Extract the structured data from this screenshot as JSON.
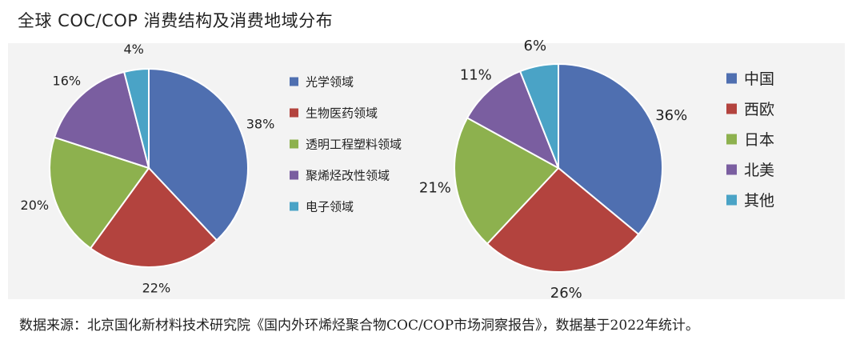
{
  "title": "全球 COC/COP 消费结构及消费地域分布",
  "source": "数据来源：北京国化新材料技术研究院《国内外环烯烃聚合物COC/COP市场洞察报告》，数据基于2022年统计。",
  "chart_data": [
    {
      "type": "pie",
      "title": "",
      "slices": [
        {
          "label": "光学领域",
          "value": 38,
          "value_label": "38%",
          "color": "#4f6fb0"
        },
        {
          "label": "生物医药领域",
          "value": 22,
          "value_label": "22%",
          "color": "#b3433e"
        },
        {
          "label": "透明工程塑料领域",
          "value": 20,
          "value_label": "20%",
          "color": "#8db14e"
        },
        {
          "label": "聚烯烃改性领域",
          "value": 16,
          "value_label": "16%",
          "color": "#7a5ea0"
        },
        {
          "label": "电子领域",
          "value": 4,
          "value_label": "4%",
          "color": "#4aa3c6"
        }
      ],
      "legend_position": "right"
    },
    {
      "type": "pie",
      "title": "",
      "slices": [
        {
          "label": "中国",
          "value": 36,
          "value_label": "36%",
          "color": "#4f6fb0"
        },
        {
          "label": "西欧",
          "value": 26,
          "value_label": "26%",
          "color": "#b3433e"
        },
        {
          "label": "日本",
          "value": 21,
          "value_label": "21%",
          "color": "#8db14e"
        },
        {
          "label": "北美",
          "value": 11,
          "value_label": "11%",
          "color": "#7a5ea0"
        },
        {
          "label": "其他",
          "value": 6,
          "value_label": "6%",
          "color": "#4aa3c6"
        }
      ],
      "legend_position": "right"
    }
  ]
}
